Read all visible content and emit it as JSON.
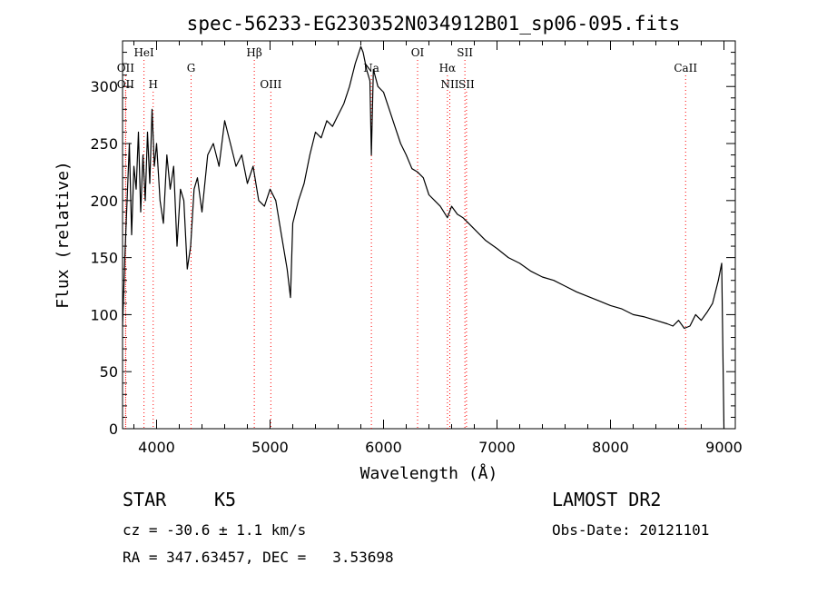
{
  "chart_data": {
    "type": "line",
    "title": "spec-56233-EG230352N034912B01_sp06-095.fits",
    "xlabel": "Wavelength (Å)",
    "ylabel": "Flux (relative)",
    "xlim": [
      3700,
      9100
    ],
    "ylim": [
      0,
      340
    ],
    "x_ticks": [
      4000,
      5000,
      6000,
      7000,
      8000,
      9000
    ],
    "y_ticks": [
      0,
      50,
      100,
      150,
      200,
      250,
      300
    ],
    "grid": false,
    "line_color": "#000000",
    "marker_color": "#ff0000",
    "series": [
      {
        "x": [
          3700,
          3720,
          3740,
          3760,
          3780,
          3800,
          3820,
          3840,
          3860,
          3880,
          3900,
          3920,
          3940,
          3960,
          3980,
          4000,
          4030,
          4060,
          4090,
          4120,
          4150,
          4180,
          4210,
          4240,
          4270,
          4300,
          4330,
          4360,
          4400,
          4450,
          4500,
          4550,
          4600,
          4650,
          4700,
          4750,
          4800,
          4850,
          4900,
          4950,
          5000,
          5050,
          5100,
          5150,
          5180,
          5200,
          5250,
          5300,
          5350,
          5400,
          5450,
          5500,
          5550,
          5600,
          5650,
          5700,
          5750,
          5800,
          5820,
          5850,
          5880,
          5893,
          5910,
          5950,
          6000,
          6050,
          6100,
          6150,
          6200,
          6250,
          6300,
          6350,
          6400,
          6450,
          6500,
          6563,
          6600,
          6650,
          6700,
          6750,
          6800,
          6900,
          7000,
          7100,
          7200,
          7300,
          7400,
          7500,
          7600,
          7700,
          7800,
          7900,
          8000,
          8100,
          8200,
          8300,
          8400,
          8500,
          8550,
          8600,
          8650,
          8700,
          8750,
          8800,
          8850,
          8900,
          8950,
          8980,
          9000
        ],
        "y": [
          90,
          150,
          200,
          250,
          170,
          230,
          210,
          260,
          190,
          240,
          200,
          260,
          215,
          280,
          230,
          250,
          200,
          180,
          240,
          210,
          230,
          160,
          210,
          200,
          140,
          160,
          210,
          220,
          190,
          240,
          250,
          230,
          270,
          250,
          230,
          240,
          215,
          230,
          200,
          195,
          210,
          200,
          170,
          140,
          115,
          180,
          200,
          215,
          240,
          260,
          255,
          270,
          265,
          275,
          285,
          300,
          320,
          335,
          330,
          315,
          305,
          240,
          315,
          300,
          295,
          280,
          265,
          250,
          240,
          228,
          225,
          220,
          205,
          200,
          195,
          185,
          195,
          188,
          185,
          180,
          175,
          165,
          158,
          150,
          145,
          138,
          133,
          130,
          125,
          120,
          116,
          112,
          108,
          105,
          100,
          98,
          95,
          92,
          90,
          95,
          88,
          90,
          100,
          95,
          102,
          110,
          130,
          145,
          0
        ]
      }
    ],
    "lines": [
      {
        "label": "OII",
        "x": 3727,
        "row": "upper"
      },
      {
        "label": "HeI",
        "x": 3889,
        "row": "top"
      },
      {
        "label": "OII",
        "x": 3727,
        "row": "lower"
      },
      {
        "label": "H",
        "x": 3970,
        "row": "lower"
      },
      {
        "label": "G",
        "x": 4304,
        "row": "upper"
      },
      {
        "label": "Hβ",
        "x": 4861,
        "row": "top"
      },
      {
        "label": "OIII",
        "x": 5007,
        "row": "lower"
      },
      {
        "label": "Na",
        "x": 5893,
        "row": "upper"
      },
      {
        "label": "OI",
        "x": 6300,
        "row": "top"
      },
      {
        "label": "Hα",
        "x": 6563,
        "row": "upper"
      },
      {
        "label": "NII",
        "x": 6584,
        "row": "lower"
      },
      {
        "label": "SII",
        "x": 6717,
        "row": "top"
      },
      {
        "label": "SII",
        "x": 6731,
        "row": "lower"
      },
      {
        "label": "CaII",
        "x": 8662,
        "row": "upper"
      }
    ]
  },
  "info": {
    "object_class": "STAR",
    "subclass": "K5",
    "survey": "LAMOST DR2",
    "cz": "cz = -30.6 ± 1.1 km/s",
    "obs_date": "Obs-Date: 20121101",
    "coords": "RA = 347.63457, DEC =   3.53698"
  }
}
